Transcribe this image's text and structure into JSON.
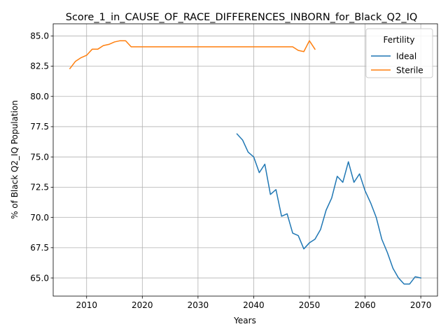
{
  "chart_data": {
    "type": "line",
    "title": "Score_1_in_CAUSE_OF_RACE_DIFFERENCES_INBORN_for_Black_Q2_IQ",
    "xlabel": "Years",
    "ylabel": "% of Black Q2_IQ Population",
    "xlim": [
      2004,
      2073
    ],
    "ylim": [
      63.5,
      86.0
    ],
    "xticks": [
      2010,
      2020,
      2030,
      2040,
      2050,
      2060,
      2070
    ],
    "yticks": [
      65.0,
      67.5,
      70.0,
      72.5,
      75.0,
      77.5,
      80.0,
      82.5,
      85.0
    ],
    "ytick_labels": [
      "65.0",
      "67.5",
      "70.0",
      "72.5",
      "75.0",
      "77.5",
      "80.0",
      "82.5",
      "85.0"
    ],
    "grid": true,
    "legend": {
      "title": "Fertility",
      "position": "upper right"
    },
    "series": [
      {
        "name": "Ideal",
        "color": "#1f77b4",
        "x": [
          2037,
          2038,
          2039,
          2040,
          2041,
          2042,
          2043,
          2044,
          2045,
          2046,
          2047,
          2048,
          2049,
          2050,
          2051,
          2052,
          2053,
          2054,
          2055,
          2056,
          2057,
          2058,
          2059,
          2060,
          2061,
          2062,
          2063,
          2064,
          2065,
          2066,
          2067,
          2068,
          2069,
          2070
        ],
        "y": [
          76.9,
          76.4,
          75.4,
          75.0,
          73.7,
          74.4,
          71.9,
          72.3,
          70.1,
          70.3,
          68.7,
          68.5,
          67.4,
          67.9,
          68.2,
          69.0,
          70.6,
          71.6,
          73.4,
          72.9,
          74.6,
          72.9,
          73.6,
          72.2,
          71.2,
          70.0,
          68.2,
          67.1,
          65.8,
          65.0,
          64.5,
          64.5,
          65.1,
          65.0
        ]
      },
      {
        "name": "Sterile",
        "color": "#ff7f0e",
        "x": [
          2007,
          2008,
          2009,
          2010,
          2011,
          2012,
          2013,
          2014,
          2015,
          2016,
          2017,
          2018,
          2019,
          2020,
          2021,
          2022,
          2023,
          2024,
          2025,
          2026,
          2027,
          2028,
          2029,
          2030,
          2031,
          2032,
          2033,
          2034,
          2035,
          2036,
          2037,
          2038,
          2039,
          2040,
          2041,
          2042,
          2043,
          2044,
          2045,
          2046,
          2047,
          2048,
          2049,
          2050,
          2051
        ],
        "y": [
          82.3,
          82.9,
          83.2,
          83.4,
          83.9,
          83.9,
          84.2,
          84.3,
          84.5,
          84.6,
          84.6,
          84.1,
          84.1,
          84.1,
          84.1,
          84.1,
          84.1,
          84.1,
          84.1,
          84.1,
          84.1,
          84.1,
          84.1,
          84.1,
          84.1,
          84.1,
          84.1,
          84.1,
          84.1,
          84.1,
          84.1,
          84.1,
          84.1,
          84.1,
          84.1,
          84.1,
          84.1,
          84.1,
          84.1,
          84.1,
          84.1,
          83.8,
          83.7,
          84.6,
          83.9
        ]
      }
    ]
  }
}
